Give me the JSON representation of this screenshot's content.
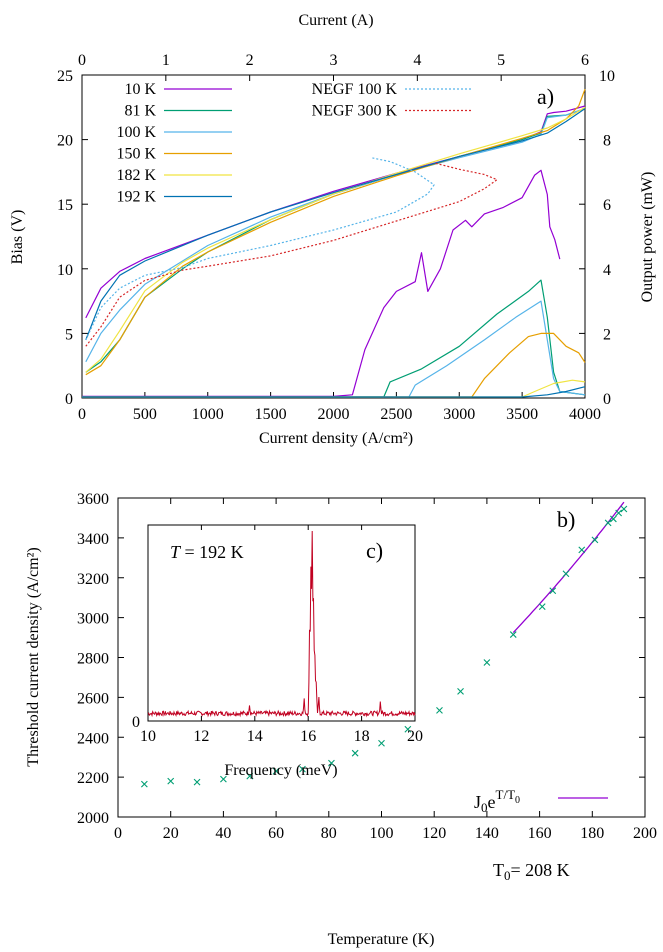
{
  "chart_data": [
    {
      "panel": "a)",
      "type": "line",
      "xlabel": "Current density (A/cm²)",
      "x2label": "Current (A)",
      "ylabel": "Bias (V)",
      "y2label": "Output power (mW)",
      "xlim": [
        0,
        4000
      ],
      "x2lim": [
        0,
        6
      ],
      "ylim": [
        0,
        25
      ],
      "y2lim": [
        0,
        10
      ],
      "xticks": [
        0,
        500,
        1000,
        1500,
        2000,
        2500,
        3000,
        3500,
        4000
      ],
      "x2ticks": [
        0,
        1,
        2,
        3,
        4,
        5,
        6
      ],
      "yticks": [
        0,
        5,
        10,
        15,
        20,
        25
      ],
      "y2ticks": [
        0,
        2,
        4,
        6,
        8,
        10
      ],
      "legend_placement": "top-left",
      "legend2_placement": "top-center",
      "series": [
        {
          "name": "10 K",
          "color": "#9400d3",
          "dash": "solid",
          "bias": [
            [
              30,
              6.2
            ],
            [
              150,
              8.5
            ],
            [
              300,
              9.8
            ],
            [
              500,
              10.8
            ],
            [
              1000,
              12.6
            ],
            [
              1500,
              14.4
            ],
            [
              2000,
              16.0
            ],
            [
              2500,
              17.4
            ],
            [
              3000,
              18.7
            ],
            [
              3500,
              20.0
            ],
            [
              3650,
              20.6
            ],
            [
              3700,
              22.0
            ],
            [
              3750,
              22.1
            ],
            [
              3850,
              22.2
            ],
            [
              4000,
              22.6
            ]
          ],
          "power": [
            [
              0,
              0.05
            ],
            [
              2000,
              0.05
            ],
            [
              2150,
              0.1
            ],
            [
              2250,
              1.5
            ],
            [
              2400,
              2.8
            ],
            [
              2500,
              3.3
            ],
            [
              2650,
              3.6
            ],
            [
              2700,
              4.5
            ],
            [
              2750,
              3.3
            ],
            [
              2850,
              4.0
            ],
            [
              2950,
              5.2
            ],
            [
              3050,
              5.5
            ],
            [
              3100,
              5.3
            ],
            [
              3200,
              5.7
            ],
            [
              3350,
              5.9
            ],
            [
              3500,
              6.2
            ],
            [
              3600,
              6.9
            ],
            [
              3650,
              7.05
            ],
            [
              3700,
              6.3
            ],
            [
              3720,
              5.3
            ],
            [
              3760,
              4.9
            ],
            [
              3800,
              4.3
            ]
          ]
        },
        {
          "name": "81 K",
          "color": "#009e73",
          "dash": "solid",
          "bias": [
            [
              30,
              2.0
            ],
            [
              150,
              2.8
            ],
            [
              300,
              4.5
            ],
            [
              500,
              7.8
            ],
            [
              800,
              10.0
            ],
            [
              1000,
              11.3
            ],
            [
              1500,
              13.8
            ],
            [
              2000,
              15.8
            ],
            [
              2500,
              17.3
            ],
            [
              3000,
              18.7
            ],
            [
              3500,
              20.0
            ],
            [
              3650,
              20.5
            ],
            [
              3700,
              21.8
            ],
            [
              3850,
              21.9
            ],
            [
              4000,
              22.4
            ]
          ],
          "power": [
            [
              0,
              0.03
            ],
            [
              2400,
              0.03
            ],
            [
              2450,
              0.5
            ],
            [
              2700,
              0.9
            ],
            [
              3000,
              1.6
            ],
            [
              3300,
              2.6
            ],
            [
              3550,
              3.3
            ],
            [
              3650,
              3.65
            ],
            [
              3700,
              2.5
            ],
            [
              3750,
              0.8
            ],
            [
              3800,
              0.2
            ],
            [
              4000,
              0.1
            ]
          ]
        },
        {
          "name": "100 K",
          "color": "#56b4e9",
          "dash": "solid",
          "bias": [
            [
              30,
              2.8
            ],
            [
              150,
              5.0
            ],
            [
              300,
              6.8
            ],
            [
              500,
              8.8
            ],
            [
              800,
              10.6
            ],
            [
              1000,
              11.8
            ],
            [
              1500,
              14.0
            ],
            [
              2000,
              15.8
            ],
            [
              2500,
              17.3
            ],
            [
              3000,
              18.6
            ],
            [
              3500,
              19.8
            ],
            [
              3650,
              20.4
            ],
            [
              3700,
              21.7
            ],
            [
              3850,
              21.9
            ],
            [
              4000,
              22.4
            ]
          ],
          "power": [
            [
              0,
              0.03
            ],
            [
              2600,
              0.03
            ],
            [
              2650,
              0.4
            ],
            [
              2900,
              1.0
            ],
            [
              3200,
              1.8
            ],
            [
              3450,
              2.5
            ],
            [
              3650,
              3.0
            ],
            [
              3700,
              1.8
            ],
            [
              3750,
              0.6
            ],
            [
              3800,
              0.2
            ],
            [
              4000,
              0.1
            ]
          ]
        },
        {
          "name": "150 K",
          "color": "#e69f00",
          "dash": "solid",
          "bias": [
            [
              30,
              1.8
            ],
            [
              150,
              2.5
            ],
            [
              300,
              4.5
            ],
            [
              500,
              7.8
            ],
            [
              800,
              10.2
            ],
            [
              1000,
              11.3
            ],
            [
              1500,
              13.6
            ],
            [
              2000,
              15.6
            ],
            [
              2500,
              17.2
            ],
            [
              3000,
              18.7
            ],
            [
              3500,
              20.1
            ],
            [
              3700,
              20.7
            ],
            [
              3850,
              21.6
            ],
            [
              3950,
              22.6
            ],
            [
              4000,
              23.9
            ]
          ],
          "power": [
            [
              0,
              0.03
            ],
            [
              3100,
              0.03
            ],
            [
              3200,
              0.6
            ],
            [
              3400,
              1.4
            ],
            [
              3550,
              1.9
            ],
            [
              3650,
              2.0
            ],
            [
              3750,
              2.0
            ],
            [
              3850,
              1.6
            ],
            [
              3950,
              1.4
            ],
            [
              4000,
              1.1
            ]
          ]
        },
        {
          "name": "182 K",
          "color": "#f0e442",
          "dash": "solid",
          "bias": [
            [
              30,
              2.0
            ],
            [
              150,
              3.0
            ],
            [
              300,
              5.2
            ],
            [
              500,
              8.3
            ],
            [
              800,
              10.5
            ],
            [
              1000,
              11.6
            ],
            [
              1500,
              13.8
            ],
            [
              2000,
              15.8
            ],
            [
              2500,
              17.4
            ],
            [
              3000,
              18.9
            ],
            [
              3500,
              20.3
            ],
            [
              3700,
              20.9
            ],
            [
              3850,
              21.6
            ],
            [
              4000,
              22.5
            ]
          ],
          "power": [
            [
              0,
              0.03
            ],
            [
              3500,
              0.03
            ],
            [
              3600,
              0.2
            ],
            [
              3750,
              0.45
            ],
            [
              3900,
              0.55
            ],
            [
              4000,
              0.5
            ]
          ]
        },
        {
          "name": "192 K",
          "color": "#0072b2",
          "dash": "solid",
          "bias": [
            [
              30,
              4.5
            ],
            [
              150,
              7.5
            ],
            [
              300,
              9.5
            ],
            [
              500,
              10.6
            ],
            [
              1000,
              12.6
            ],
            [
              1500,
              14.4
            ],
            [
              2000,
              15.9
            ],
            [
              2500,
              17.3
            ],
            [
              3000,
              18.7
            ],
            [
              3500,
              19.9
            ],
            [
              3700,
              20.5
            ],
            [
              3850,
              21.4
            ],
            [
              4000,
              22.4
            ]
          ],
          "power": [
            [
              0,
              0.03
            ],
            [
              3500,
              0.03
            ],
            [
              3700,
              0.1
            ],
            [
              3850,
              0.2
            ],
            [
              4000,
              0.35
            ]
          ]
        },
        {
          "name": "NEGF 100 K",
          "color": "#56b4e9",
          "dash": "dotted",
          "bias": [
            [
              30,
              4.5
            ],
            [
              150,
              7.0
            ],
            [
              300,
              8.5
            ],
            [
              500,
              9.5
            ],
            [
              800,
              10.1
            ],
            [
              1000,
              10.8
            ],
            [
              1500,
              11.8
            ],
            [
              2000,
              13.0
            ],
            [
              2500,
              14.4
            ],
            [
              2750,
              15.8
            ],
            [
              2800,
              16.5
            ],
            [
              2650,
              17.5
            ],
            [
              2450,
              18.3
            ],
            [
              2300,
              18.6
            ]
          ]
        },
        {
          "name": "NEGF 300 K",
          "color": "#d62728",
          "dash": "dotted",
          "bias": [
            [
              30,
              4.0
            ],
            [
              150,
              5.5
            ],
            [
              300,
              7.8
            ],
            [
              500,
              9.1
            ],
            [
              800,
              9.9
            ],
            [
              1000,
              10.2
            ],
            [
              1500,
              11.0
            ],
            [
              2000,
              12.2
            ],
            [
              2500,
              13.7
            ],
            [
              3000,
              15.2
            ],
            [
              3200,
              16.2
            ],
            [
              3300,
              16.9
            ],
            [
              3200,
              17.3
            ],
            [
              3000,
              17.7
            ],
            [
              2800,
              18.2
            ]
          ]
        }
      ]
    },
    {
      "panel": "b)",
      "type": "scatter",
      "xlabel": "Temperature (K)",
      "ylabel": "Threshold current density (A/cm²)",
      "xlim": [
        0,
        200
      ],
      "ylim": [
        2000,
        3600
      ],
      "xticks": [
        0,
        20,
        40,
        60,
        80,
        100,
        120,
        140,
        160,
        180,
        200
      ],
      "yticks": [
        2000,
        2200,
        2400,
        2600,
        2800,
        3000,
        3200,
        3400,
        3600
      ],
      "marker_color": "#009e73",
      "points": [
        [
          10,
          2165
        ],
        [
          20,
          2180
        ],
        [
          30,
          2175
        ],
        [
          40,
          2190
        ],
        [
          50,
          2205
        ],
        [
          60,
          2230
        ],
        [
          70,
          2240
        ],
        [
          81,
          2270
        ],
        [
          90,
          2320
        ],
        [
          100,
          2370
        ],
        [
          110,
          2440
        ],
        [
          122,
          2535
        ],
        [
          130,
          2630
        ],
        [
          140,
          2775
        ],
        [
          150,
          2915
        ],
        [
          161,
          3055
        ],
        [
          165,
          3135
        ],
        [
          170,
          3220
        ],
        [
          176,
          3340
        ],
        [
          181,
          3390
        ],
        [
          186,
          3475
        ],
        [
          188,
          3495
        ],
        [
          190,
          3525
        ],
        [
          192,
          3545
        ]
      ],
      "fit": {
        "label_base": "J",
        "label_sub": "0",
        "label_exp_base": "e",
        "label_exp": "T/T",
        "label_exp_sub": "0",
        "t0_label": "T",
        "t0_sub": "0",
        "t0_value": "= 208 K",
        "color": "#9400d3",
        "T0": 208,
        "J0": 1422,
        "x_range": [
          150,
          192
        ]
      }
    },
    {
      "panel": "c)",
      "type": "line",
      "xlabel": "Frequency (meV)",
      "ylabel_tick": "0",
      "annotation_var": "T",
      "annotation_value": "= 192 K",
      "xlim": [
        10,
        20
      ],
      "ylim": [
        0,
        1
      ],
      "xticks": [
        10,
        12,
        14,
        16,
        18,
        20
      ],
      "color": "#c00020",
      "baseline": 0.03,
      "peaks": [
        [
          16.05,
          0.42
        ],
        [
          16.1,
          0.75
        ],
        [
          16.15,
          1.0
        ],
        [
          16.2,
          0.58
        ],
        [
          16.25,
          0.3
        ],
        [
          16.3,
          0.15
        ],
        [
          16.4,
          0.08
        ],
        [
          15.85,
          0.07
        ],
        [
          13.8,
          0.05
        ],
        [
          18.7,
          0.06
        ]
      ]
    }
  ]
}
